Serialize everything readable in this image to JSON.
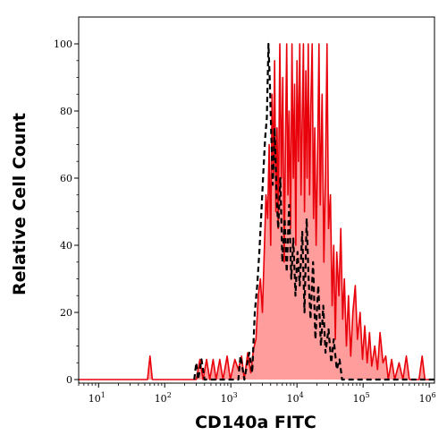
{
  "chart_data": {
    "type": "area",
    "title": "",
    "xlabel": "CD140a FITC",
    "ylabel": "Relative Cell Count",
    "x_scale": "log",
    "xlim": [
      5,
      1200000
    ],
    "ylim": [
      0,
      100
    ],
    "x_tick_labels": [
      {
        "base": "10",
        "exp": "1"
      },
      {
        "base": "10",
        "exp": "2"
      },
      {
        "base": "10",
        "exp": "3"
      },
      {
        "base": "10",
        "exp": "4"
      },
      {
        "base": "10",
        "exp": "5"
      },
      {
        "base": "10",
        "exp": "6"
      }
    ],
    "y_ticks": [
      0,
      20,
      40,
      60,
      80,
      100
    ],
    "grid": false,
    "series": [
      {
        "style": "solid-filled",
        "color": "#e8000b",
        "fill": "#ff9c9c",
        "points": [
          [
            5,
            0
          ],
          [
            55,
            0
          ],
          [
            60,
            7
          ],
          [
            65,
            0
          ],
          [
            300,
            0
          ],
          [
            340,
            6
          ],
          [
            380,
            0
          ],
          [
            430,
            6
          ],
          [
            480,
            0
          ],
          [
            540,
            6
          ],
          [
            600,
            0
          ],
          [
            680,
            6
          ],
          [
            760,
            0
          ],
          [
            880,
            7
          ],
          [
            980,
            0
          ],
          [
            1150,
            6
          ],
          [
            1300,
            3
          ],
          [
            1450,
            7
          ],
          [
            1600,
            0
          ],
          [
            1800,
            8
          ],
          [
            2000,
            2
          ],
          [
            2200,
            9
          ],
          [
            2400,
            12
          ],
          [
            2600,
            25
          ],
          [
            2800,
            30
          ],
          [
            3000,
            20
          ],
          [
            3200,
            38
          ],
          [
            3400,
            55
          ],
          [
            3600,
            48
          ],
          [
            3800,
            70
          ],
          [
            4000,
            40
          ],
          [
            4200,
            85
          ],
          [
            4400,
            60
          ],
          [
            4600,
            95
          ],
          [
            4800,
            50
          ],
          [
            5000,
            75
          ],
          [
            5200,
            45
          ],
          [
            5500,
            100
          ],
          [
            5800,
            60
          ],
          [
            6100,
            90
          ],
          [
            6400,
            35
          ],
          [
            6700,
            70
          ],
          [
            7000,
            100
          ],
          [
            7300,
            55
          ],
          [
            7600,
            80
          ],
          [
            8000,
            45
          ],
          [
            8400,
            100
          ],
          [
            8800,
            60
          ],
          [
            9200,
            88
          ],
          [
            9600,
            40
          ],
          [
            10000,
            95
          ],
          [
            10500,
            65
          ],
          [
            11000,
            100
          ],
          [
            11500,
            55
          ],
          [
            12000,
            78
          ],
          [
            12500,
            100
          ],
          [
            13000,
            50
          ],
          [
            13600,
            92
          ],
          [
            14200,
            60
          ],
          [
            14800,
            100
          ],
          [
            15500,
            55
          ],
          [
            16200,
            82
          ],
          [
            17000,
            100
          ],
          [
            17800,
            48
          ],
          [
            18600,
            75
          ],
          [
            19500,
            40
          ],
          [
            20500,
            68
          ],
          [
            21500,
            100
          ],
          [
            22500,
            52
          ],
          [
            24000,
            85
          ],
          [
            25500,
            35
          ],
          [
            27000,
            62
          ],
          [
            28500,
            100
          ],
          [
            30000,
            45
          ],
          [
            32000,
            55
          ],
          [
            34000,
            22
          ],
          [
            36000,
            40
          ],
          [
            38000,
            12
          ],
          [
            40000,
            38
          ],
          [
            43000,
            25
          ],
          [
            46000,
            45
          ],
          [
            49000,
            18
          ],
          [
            52000,
            30
          ],
          [
            56000,
            10
          ],
          [
            60000,
            25
          ],
          [
            65000,
            7
          ],
          [
            70000,
            20
          ],
          [
            76000,
            28
          ],
          [
            82000,
            12
          ],
          [
            90000,
            20
          ],
          [
            98000,
            6
          ],
          [
            106000,
            16
          ],
          [
            115000,
            5
          ],
          [
            125000,
            14
          ],
          [
            135000,
            4
          ],
          [
            150000,
            10
          ],
          [
            165000,
            3
          ],
          [
            180000,
            14
          ],
          [
            200000,
            5
          ],
          [
            220000,
            7
          ],
          [
            240000,
            0
          ],
          [
            270000,
            6
          ],
          [
            300000,
            0
          ],
          [
            350000,
            5
          ],
          [
            400000,
            0
          ],
          [
            450000,
            7
          ],
          [
            500000,
            0
          ],
          [
            700000,
            0
          ],
          [
            780000,
            7
          ],
          [
            860000,
            0
          ],
          [
            1200000,
            0
          ]
        ]
      },
      {
        "style": "dashed",
        "color": "#000000",
        "points": [
          [
            280,
            0
          ],
          [
            300,
            5
          ],
          [
            320,
            0
          ],
          [
            360,
            6
          ],
          [
            400,
            0
          ],
          [
            1300,
            0
          ],
          [
            1400,
            7
          ],
          [
            1600,
            0
          ],
          [
            1900,
            8
          ],
          [
            2100,
            2
          ],
          [
            2300,
            20
          ],
          [
            2500,
            28
          ],
          [
            2700,
            38
          ],
          [
            2900,
            50
          ],
          [
            3100,
            62
          ],
          [
            3300,
            72
          ],
          [
            3500,
            78
          ],
          [
            3700,
            100
          ],
          [
            3900,
            88
          ],
          [
            4100,
            72
          ],
          [
            4300,
            58
          ],
          [
            4600,
            75
          ],
          [
            4900,
            55
          ],
          [
            5200,
            45
          ],
          [
            5600,
            60
          ],
          [
            6000,
            35
          ],
          [
            6500,
            48
          ],
          [
            7000,
            32
          ],
          [
            7600,
            52
          ],
          [
            8200,
            30
          ],
          [
            8800,
            42
          ],
          [
            9500,
            25
          ],
          [
            10200,
            38
          ],
          [
            11000,
            28
          ],
          [
            12000,
            44
          ],
          [
            13000,
            20
          ],
          [
            14000,
            48
          ],
          [
            15000,
            30
          ],
          [
            16000,
            18
          ],
          [
            17500,
            35
          ],
          [
            19000,
            12
          ],
          [
            21000,
            28
          ],
          [
            23000,
            10
          ],
          [
            25000,
            22
          ],
          [
            27000,
            8
          ],
          [
            30000,
            15
          ],
          [
            33000,
            5
          ],
          [
            36000,
            12
          ],
          [
            40000,
            3
          ],
          [
            44000,
            6
          ],
          [
            48000,
            0
          ],
          [
            1200000,
            0
          ]
        ]
      }
    ]
  }
}
